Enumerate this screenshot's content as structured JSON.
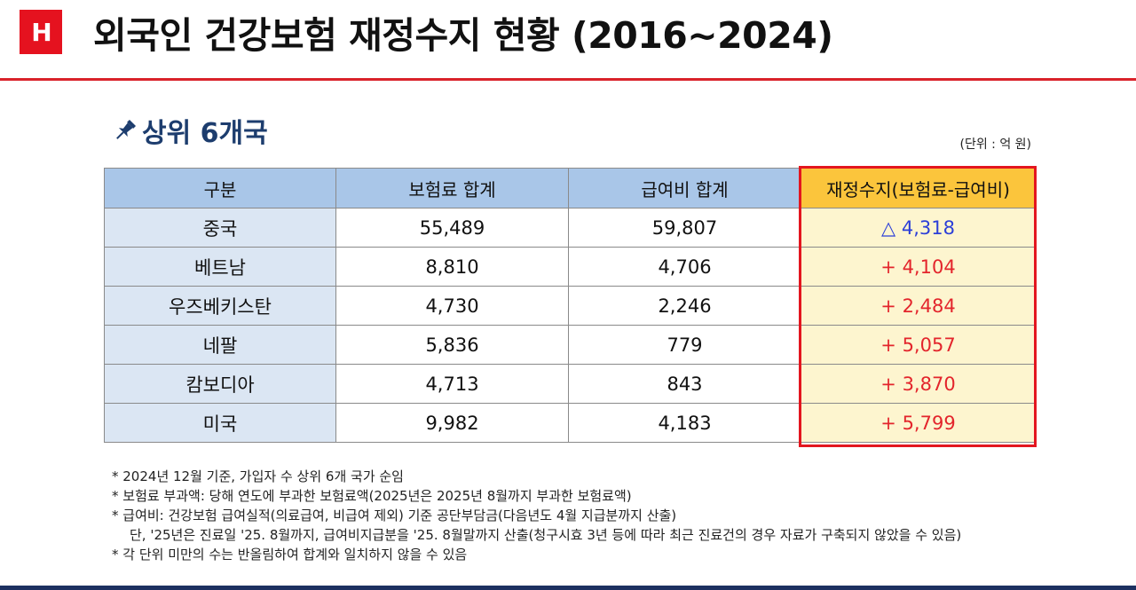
{
  "logo": {
    "text": "H"
  },
  "title": "외국인 건강보험 재정수지 현황 (2016~2024)",
  "subtitle": "상위 6개국",
  "unit": "(단위 : 억 원)",
  "table": {
    "headers": [
      "구분",
      "보험료 합계",
      "급여비 합계",
      "재정수지(보험료-급여비)"
    ],
    "rows": [
      {
        "country": "중국",
        "premium": "55,489",
        "benefit": "59,807",
        "balance": "△ 4,318",
        "sign": "neg"
      },
      {
        "country": "베트남",
        "premium": "8,810",
        "benefit": "4,706",
        "balance": "+ 4,104",
        "sign": "pos"
      },
      {
        "country": "우즈베키스탄",
        "premium": "4,730",
        "benefit": "2,246",
        "balance": "+ 2,484",
        "sign": "pos"
      },
      {
        "country": "네팔",
        "premium": "5,836",
        "benefit": "779",
        "balance": "+ 5,057",
        "sign": "pos"
      },
      {
        "country": "캄보디아",
        "premium": "4,713",
        "benefit": "843",
        "balance": "+ 3,870",
        "sign": "pos"
      },
      {
        "country": "미국",
        "premium": "9,982",
        "benefit": "4,183",
        "balance": "+ 5,799",
        "sign": "pos"
      }
    ]
  },
  "notes": [
    "* 2024년 12월 기준, 가입자 수 상위 6개 국가 순임",
    "* 보험료 부과액: 당해 연도에 부과한 보험료액(2025년은 2025년 8월까지 부과한 보험료액)",
    "* 급여비: 건강보험 급여실적(의료급여, 비급여 제외) 기준 공단부담금(다음년도 4월 지급분까지 산출)",
    "단, '25년은 진료일 '25. 8월까지, 급여비지급분을 '25. 8월말까지 산출(청구시효 3년 등에 따라 최근 진료건의 경우 자료가 구축되지 않았을 수 있음)",
    "* 각 단위 미만의 수는 반올림하여 합계와 일치하지 않을 수 있음"
  ],
  "colors": {
    "accent_red": "#e3161f",
    "header_blue": "#a9c6e8",
    "highlight_yellow": "#fbc53c",
    "negative_blue": "#2c3fd8"
  }
}
